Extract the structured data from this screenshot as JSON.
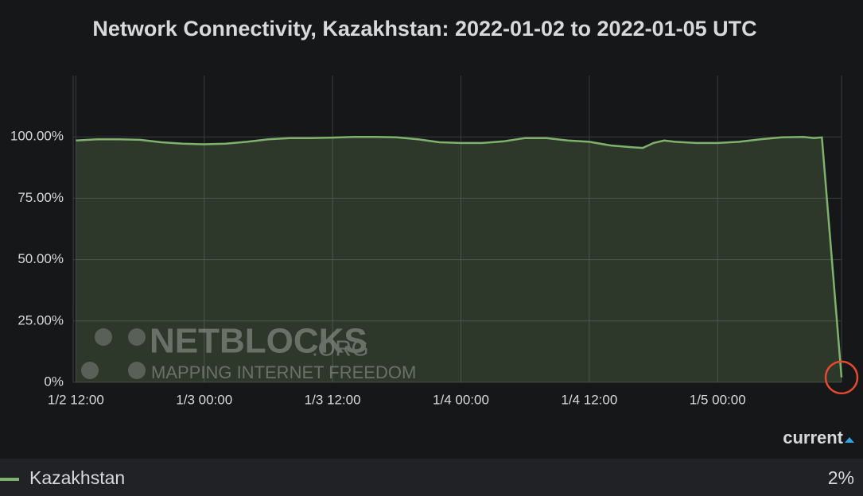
{
  "chart_data": {
    "type": "area",
    "title": "Network Connectivity, Kazakhstan: 2022-01-02 to 2022-01-05 UTC",
    "x": [
      "2022-01-02T12:00",
      "2022-01-02T14:00",
      "2022-01-02T16:00",
      "2022-01-02T18:00",
      "2022-01-02T20:00",
      "2022-01-02T22:00",
      "2022-01-03T00:00",
      "2022-01-03T02:00",
      "2022-01-03T04:00",
      "2022-01-03T06:00",
      "2022-01-03T08:00",
      "2022-01-03T10:00",
      "2022-01-03T12:00",
      "2022-01-03T14:00",
      "2022-01-03T16:00",
      "2022-01-03T18:00",
      "2022-01-03T20:00",
      "2022-01-03T22:00",
      "2022-01-04T00:00",
      "2022-01-04T02:00",
      "2022-01-04T04:00",
      "2022-01-04T06:00",
      "2022-01-04T08:00",
      "2022-01-04T10:00",
      "2022-01-04T12:00",
      "2022-01-04T14:00",
      "2022-01-04T16:00",
      "2022-01-04T17:00",
      "2022-01-04T18:00",
      "2022-01-04T19:00",
      "2022-01-04T20:00",
      "2022-01-04T22:00",
      "2022-01-05T00:00",
      "2022-01-05T02:00",
      "2022-01-05T04:00",
      "2022-01-05T06:00",
      "2022-01-05T08:00",
      "2022-01-05T09:00",
      "2022-01-05T09:45",
      "2022-01-05T11:35"
    ],
    "series": [
      {
        "name": "Kazakhstan",
        "color": "#7eb26d",
        "values": [
          98.5,
          99,
          99,
          98.8,
          97.8,
          97.2,
          97,
          97.2,
          98,
          99,
          99.5,
          99.5,
          99.7,
          100,
          100,
          99.8,
          99,
          97.8,
          97.5,
          97.5,
          98.2,
          99.5,
          99.5,
          98.5,
          98,
          96.5,
          95.8,
          95.5,
          97.5,
          98.5,
          98,
          97.5,
          97.5,
          98,
          99,
          99.8,
          100,
          99.5,
          99.8,
          2
        ],
        "value_labels": [
          null,
          null,
          null,
          null,
          null,
          null,
          null,
          null,
          null,
          null,
          null,
          null,
          null,
          null,
          null,
          null,
          null,
          null,
          null,
          null,
          null,
          null,
          null,
          null,
          null,
          null,
          null,
          null,
          null,
          null,
          null,
          null,
          null,
          null,
          null,
          null,
          null,
          null,
          null,
          "2%"
        ]
      }
    ],
    "xlim": [
      "2022-01-02T11:45",
      "2022-01-05T11:35"
    ],
    "xticks": [
      {
        "value": "2022-01-02T12:00",
        "label": "1/2 12:00"
      },
      {
        "value": "2022-01-03T00:00",
        "label": "1/3 00:00"
      },
      {
        "value": "2022-01-03T12:00",
        "label": "1/3 12:00"
      },
      {
        "value": "2022-01-04T00:00",
        "label": "1/4 00:00"
      },
      {
        "value": "2022-01-04T12:00",
        "label": "1/4 12:00"
      },
      {
        "value": "2022-01-05T00:00",
        "label": "1/5 00:00"
      }
    ],
    "ylim": [
      0,
      125
    ],
    "yticks": [
      {
        "value": 0,
        "label": "0%"
      },
      {
        "value": 25,
        "label": "25.00%"
      },
      {
        "value": 50,
        "label": "50.00%"
      },
      {
        "value": 75,
        "label": "75.00%"
      },
      {
        "value": 100,
        "label": "100.00%"
      }
    ],
    "grid": true,
    "legend_header": "current",
    "watermark": {
      "brand": "NETBLOCKS",
      "suffix": ".ORG",
      "tagline": "MAPPING INTERNET FREEDOM"
    }
  }
}
